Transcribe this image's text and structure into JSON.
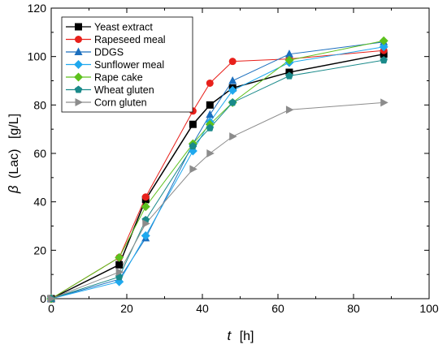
{
  "chart_data": {
    "type": "line",
    "xlabel": {
      "var": "t",
      "unit": "[h]"
    },
    "ylabel": {
      "var": "β",
      "text": "(Lac)",
      "unit": "[g/L]"
    },
    "xlim": [
      0,
      100
    ],
    "ylim": [
      0,
      120
    ],
    "xticks": [
      0,
      20,
      40,
      60,
      80,
      100
    ],
    "yticks": [
      0,
      20,
      40,
      60,
      80,
      100,
      120
    ],
    "x_tick_labels": [
      "0",
      "20",
      "40",
      "60",
      "80",
      "100"
    ],
    "y_tick_labels": [
      "0",
      "20",
      "40",
      "60",
      "80",
      "100",
      "120"
    ],
    "grid": false,
    "legend_position": "top-left",
    "series": [
      {
        "name": "Yeast extract",
        "color": "#000000",
        "marker": "square",
        "x": [
          0,
          18,
          25,
          37.5,
          42,
          48,
          63,
          88
        ],
        "y": [
          0,
          14,
          41,
          72,
          80,
          87,
          93.5,
          101
        ]
      },
      {
        "name": "Rapeseed meal",
        "color": "#e8201b",
        "marker": "circle",
        "x": [
          0,
          18,
          25,
          37.5,
          42,
          48,
          63,
          88
        ],
        "y": [
          0,
          17,
          42,
          77.5,
          89,
          98,
          99,
          102.5
        ]
      },
      {
        "name": "DDGS",
        "color": "#1c6fbe",
        "marker": "triangle-up",
        "x": [
          0,
          18,
          25,
          37.5,
          42,
          48,
          63,
          88
        ],
        "y": [
          0,
          8,
          25,
          64,
          76,
          90,
          101,
          106
        ]
      },
      {
        "name": "Sunflower meal",
        "color": "#1fa8ee",
        "marker": "diamond",
        "x": [
          0,
          18,
          25,
          37.5,
          42,
          48,
          63,
          88
        ],
        "y": [
          0,
          7,
          26,
          61,
          73,
          86,
          97.5,
          104
        ]
      },
      {
        "name": "Rape cake",
        "color": "#5dc11d",
        "marker": "diamond",
        "x": [
          0,
          18,
          25,
          37.5,
          42,
          48,
          63,
          88
        ],
        "y": [
          0,
          17,
          38,
          64,
          72,
          81,
          98.5,
          106.5
        ]
      },
      {
        "name": "Wheat gluten",
        "color": "#1a8a8a",
        "marker": "pentagon",
        "x": [
          0,
          18,
          25,
          37.5,
          42,
          48,
          63,
          88
        ],
        "y": [
          0,
          9,
          32.5,
          63,
          70.5,
          81,
          92,
          98.5
        ]
      },
      {
        "name": "Corn gluten",
        "color": "#8c8c8c",
        "marker": "triangle-right",
        "x": [
          0,
          18,
          25,
          37.5,
          42,
          48,
          63,
          88
        ],
        "y": [
          0,
          11,
          31,
          53.5,
          60,
          67,
          78,
          81
        ]
      }
    ]
  }
}
